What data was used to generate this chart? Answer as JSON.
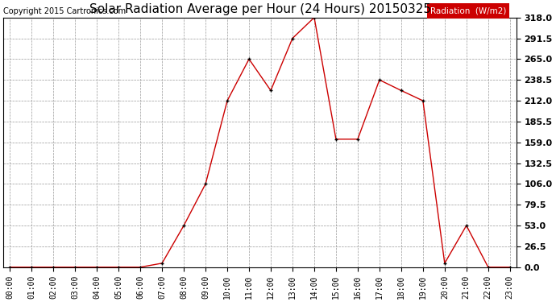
{
  "title": "Solar Radiation Average per Hour (24 Hours) 20150325",
  "copyright_text": "Copyright 2015 Cartronics.com",
  "legend_label": "Radiation  (W/m2)",
  "x_labels": [
    "00:00",
    "01:00",
    "02:00",
    "03:00",
    "04:00",
    "05:00",
    "06:00",
    "07:00",
    "08:00",
    "09:00",
    "10:00",
    "11:00",
    "12:00",
    "13:00",
    "14:00",
    "15:00",
    "16:00",
    "17:00",
    "18:00",
    "19:00",
    "20:00",
    "21:00",
    "22:00",
    "23:00"
  ],
  "y_values": [
    0.0,
    0.0,
    0.0,
    0.0,
    0.0,
    0.0,
    0.0,
    5.0,
    53.0,
    106.0,
    212.0,
    265.0,
    225.0,
    291.5,
    318.0,
    163.0,
    163.0,
    238.5,
    225.0,
    212.0,
    5.0,
    53.0,
    0.0,
    0.0
  ],
  "yticks": [
    0.0,
    26.5,
    53.0,
    79.5,
    106.0,
    132.5,
    159.0,
    185.5,
    212.0,
    238.5,
    265.0,
    291.5,
    318.0
  ],
  "ylim": [
    0.0,
    318.0
  ],
  "line_color": "#cc0000",
  "marker_color": "#000000",
  "bg_color": "#ffffff",
  "grid_color": "#999999",
  "legend_bg": "#cc0000",
  "legend_text_color": "#ffffff",
  "title_fontsize": 11,
  "copyright_fontsize": 7,
  "tick_fontsize": 7,
  "ytick_fontsize": 8
}
